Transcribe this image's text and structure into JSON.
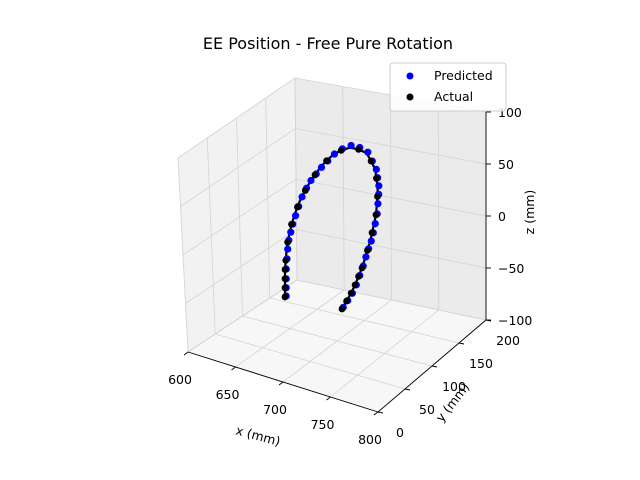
{
  "chart_data": {
    "type": "scatter",
    "title": "EE Position - Free Pure Rotation",
    "xlabel": "x (mm)",
    "ylabel": "y (mm)",
    "zlabel": "z (mm)",
    "xlim": [
      600,
      800
    ],
    "ylim": [
      0,
      200
    ],
    "zlim": [
      -100,
      100
    ],
    "x_ticks": [
      "600",
      "650",
      "700",
      "750",
      "800"
    ],
    "y_ticks": [
      "0",
      "50",
      "100",
      "150",
      "200"
    ],
    "z_ticks": [
      "−100",
      "−50",
      "0",
      "50",
      "100"
    ],
    "grid": true,
    "legend": {
      "placement": "top-right"
    },
    "series": [
      {
        "name": "Predicted",
        "color": "#0000ff"
      },
      {
        "name": "Actual",
        "color": "#000000"
      }
    ]
  }
}
